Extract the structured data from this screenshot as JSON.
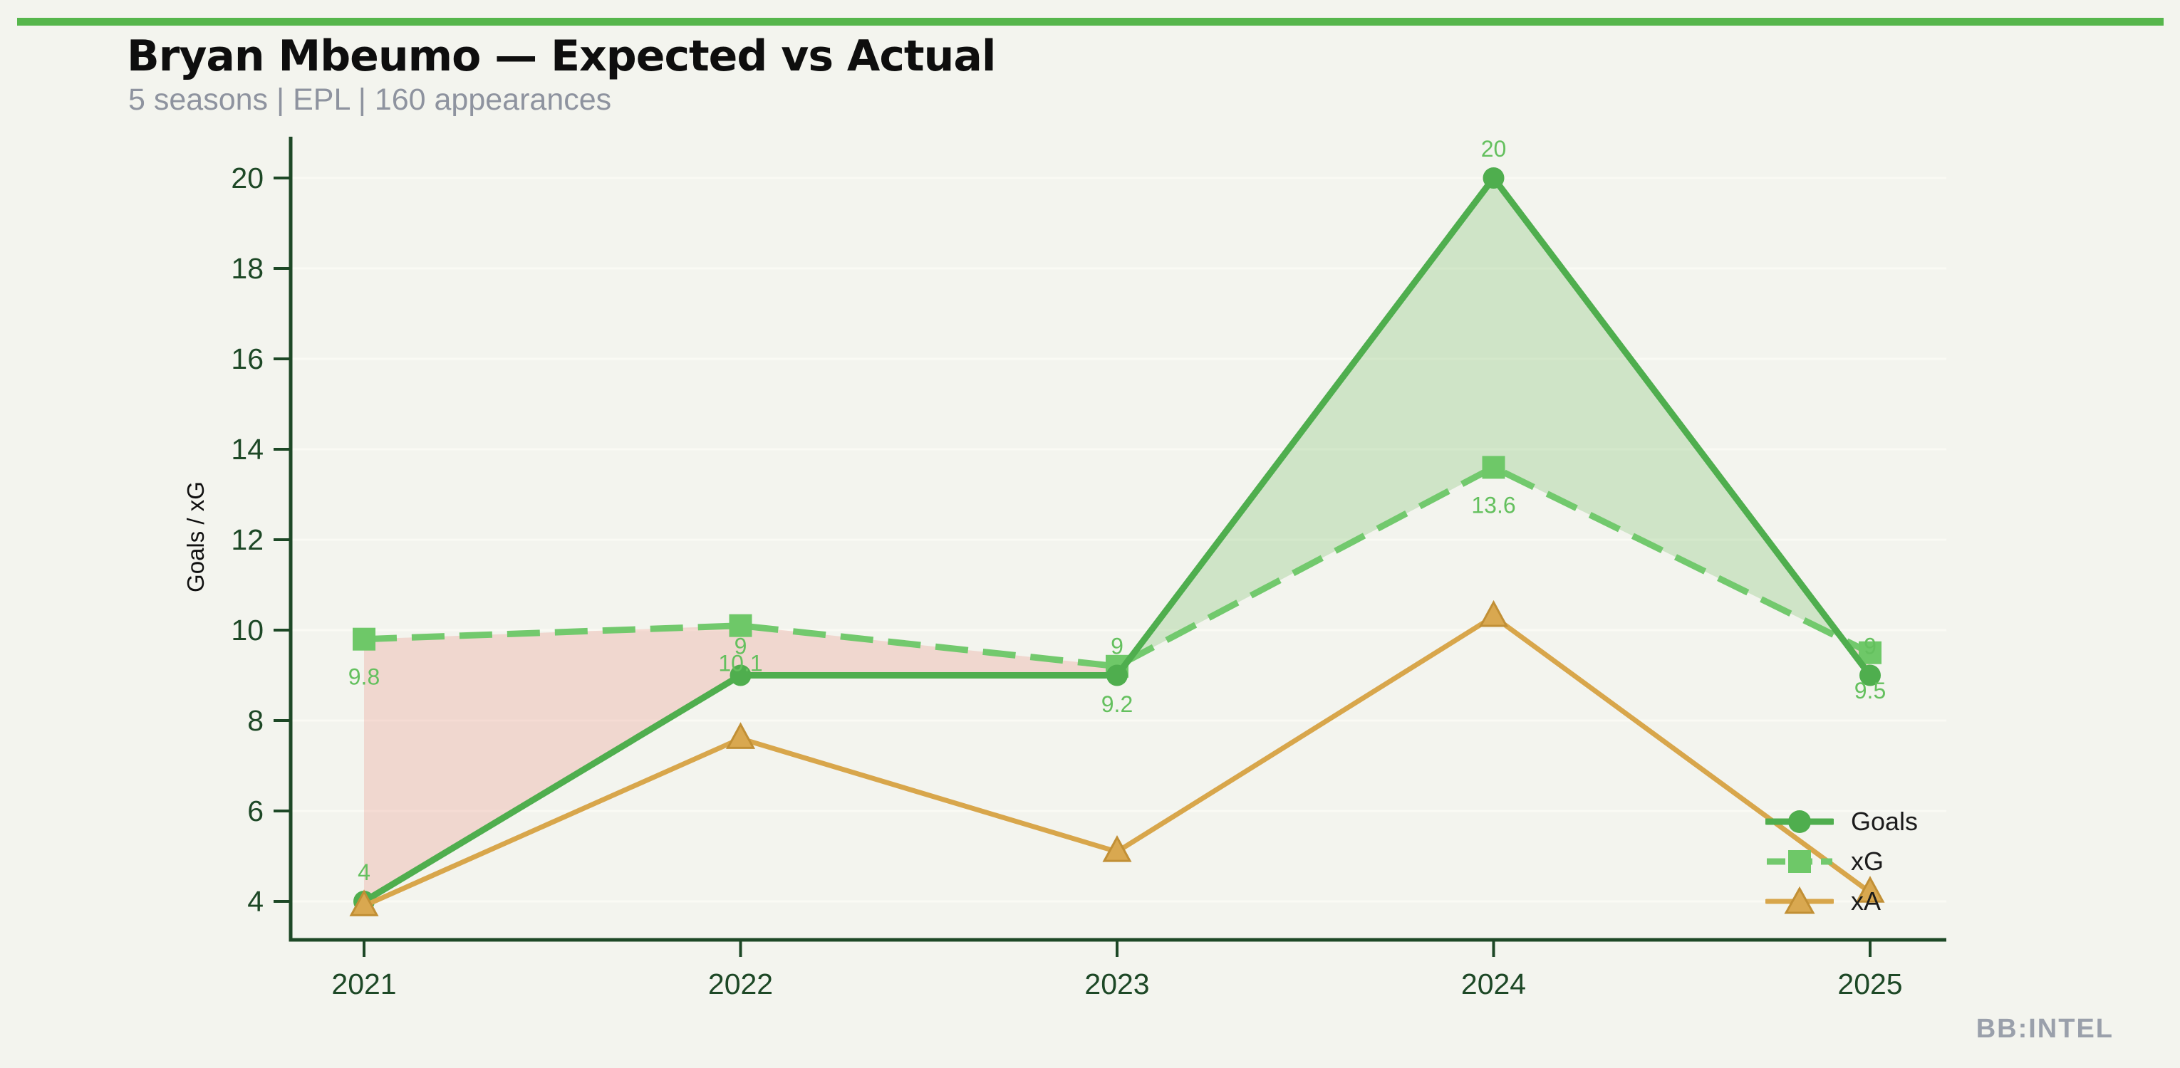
{
  "page": {
    "title": "Bryan Mbeumo — Expected vs Actual",
    "subtitle": "5 seasons | EPL | 160 appearances",
    "watermark": "BB:INTEL"
  },
  "colors": {
    "background": "#f3f4ee",
    "accent_bar": "#56b64c",
    "title_text": "#0e0e0e",
    "subtitle_text": "#8e939f",
    "watermark_text": "#9aa0ab",
    "goals_line": "#4fae4e",
    "xg_line": "#72c96d",
    "xg_marker": "#6ec868",
    "xa_line": "#d8a64b",
    "xa_marker_fill": "#d9a850",
    "xa_marker_stroke": "#c18f35",
    "axis": "#1d4826",
    "gridline": "#fafaf4",
    "data_label": "#64c05e",
    "fill_over": "rgba(125,193,110,0.30)",
    "fill_under": "rgba(235,160,150,0.35)",
    "legend_text": "#1c1c1c"
  },
  "chart_data": {
    "type": "line",
    "title": "Bryan Mbeumo — Expected vs Actual",
    "subtitle": "5 seasons | EPL | 160 appearances",
    "xlabel": "",
    "ylabel": "Goals / xG",
    "categories": [
      "2021",
      "2022",
      "2023",
      "2024",
      "2025"
    ],
    "yticks": [
      4,
      6,
      8,
      10,
      12,
      14,
      16,
      18,
      20
    ],
    "ylim": [
      3.15,
      20.9
    ],
    "grid": "horizontal-faint",
    "legend_position": "lower-right-inside",
    "series": [
      {
        "name": "Goals",
        "values": [
          4,
          9,
          9,
          20,
          9
        ],
        "point_labels": [
          "4",
          "9",
          "9",
          "20",
          "9"
        ],
        "marker": "circle",
        "line_style": "solid"
      },
      {
        "name": "xG",
        "values": [
          9.8,
          10.1,
          9.2,
          13.6,
          9.5
        ],
        "point_labels": [
          "9.8",
          "10.1",
          "9.2",
          "13.6",
          "9.5"
        ],
        "marker": "square",
        "line_style": "dashed"
      },
      {
        "name": "xA",
        "values": [
          3.9,
          7.6,
          5.1,
          10.3,
          4.2
        ],
        "point_labels": [],
        "marker": "triangle",
        "line_style": "solid"
      }
    ],
    "fill_between": {
      "between": [
        "Goals",
        "xG"
      ],
      "over_meaning": "Goals above xG (green)",
      "under_meaning": "Goals below xG (pink)"
    }
  }
}
